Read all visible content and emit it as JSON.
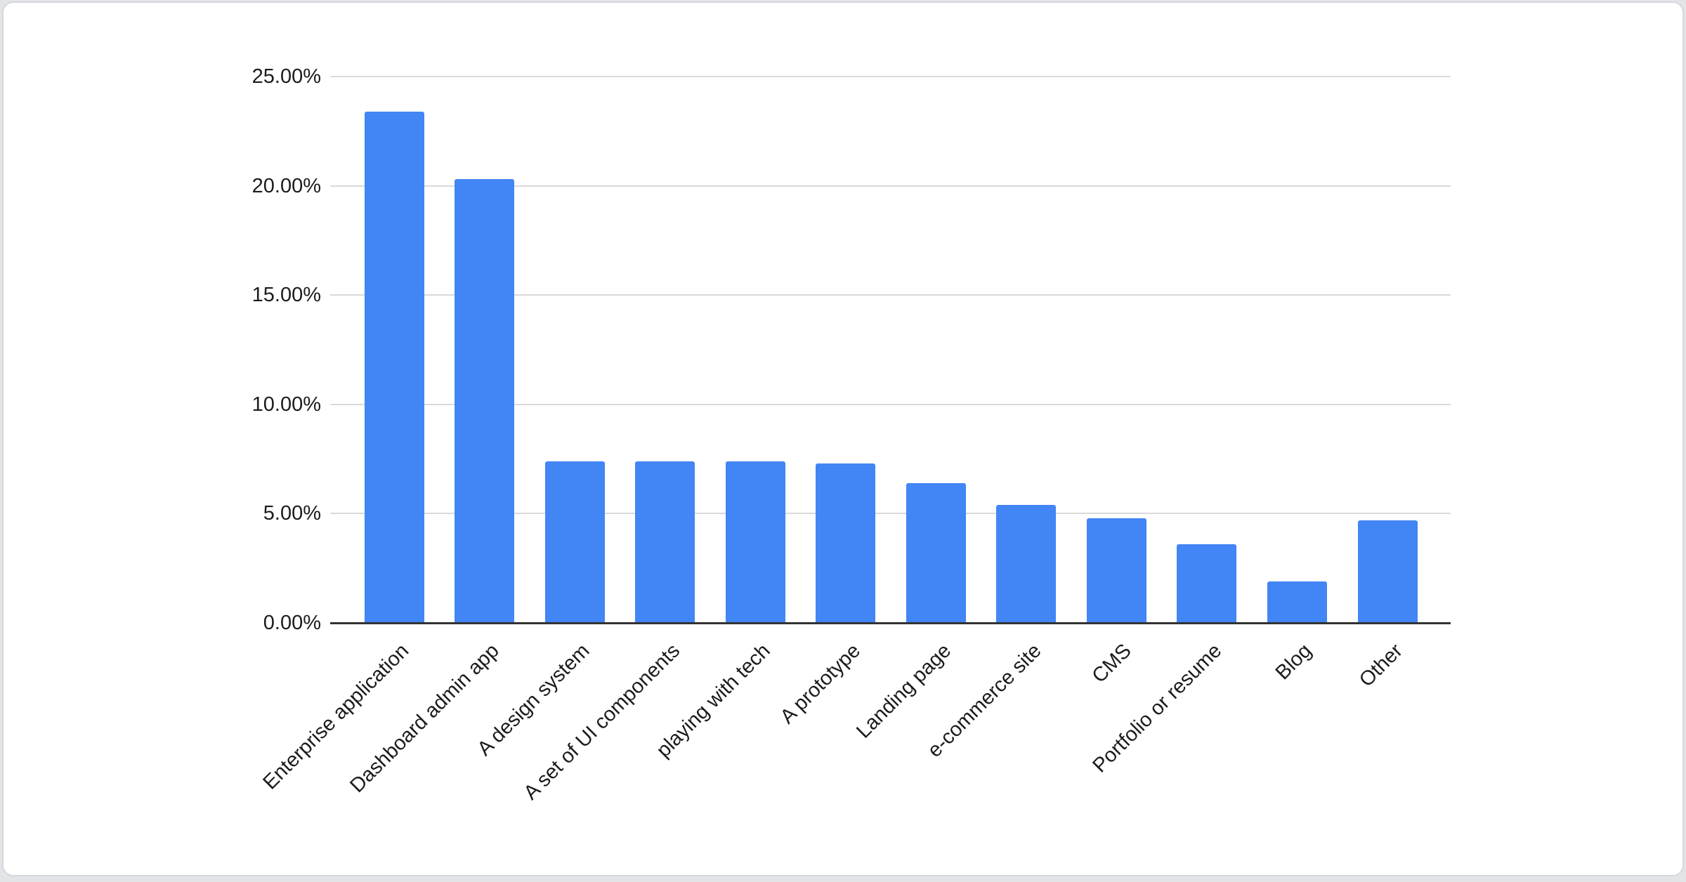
{
  "chart_data": {
    "type": "bar",
    "title": "",
    "xlabel": "",
    "ylabel": "",
    "categories": [
      "Enterprise application",
      "Dashboard admin app",
      "A design system",
      "A set of UI components",
      "playing with tech",
      "A prototype",
      "Landing page",
      "e-commerce site",
      "CMS",
      "Portfolio or resume",
      "Blog",
      "Other"
    ],
    "values": [
      23.4,
      20.3,
      7.4,
      7.4,
      7.4,
      7.3,
      6.4,
      5.4,
      4.8,
      3.6,
      1.9,
      4.7
    ],
    "value_unit": "%",
    "y_ticks": [
      0,
      5,
      10,
      15,
      20,
      25
    ],
    "y_tick_labels": [
      "0.00%",
      "5.00%",
      "10.00%",
      "15.00%",
      "20.00%",
      "25.00%"
    ],
    "ylim": [
      0,
      25
    ],
    "grid": true,
    "legend": "none",
    "bar_color": "#4285f4",
    "gridline_color": "#d9d9d9",
    "axis_line_color": "#333333",
    "label_color": "#1c1c1c",
    "x_label_rotation_deg": -45
  }
}
